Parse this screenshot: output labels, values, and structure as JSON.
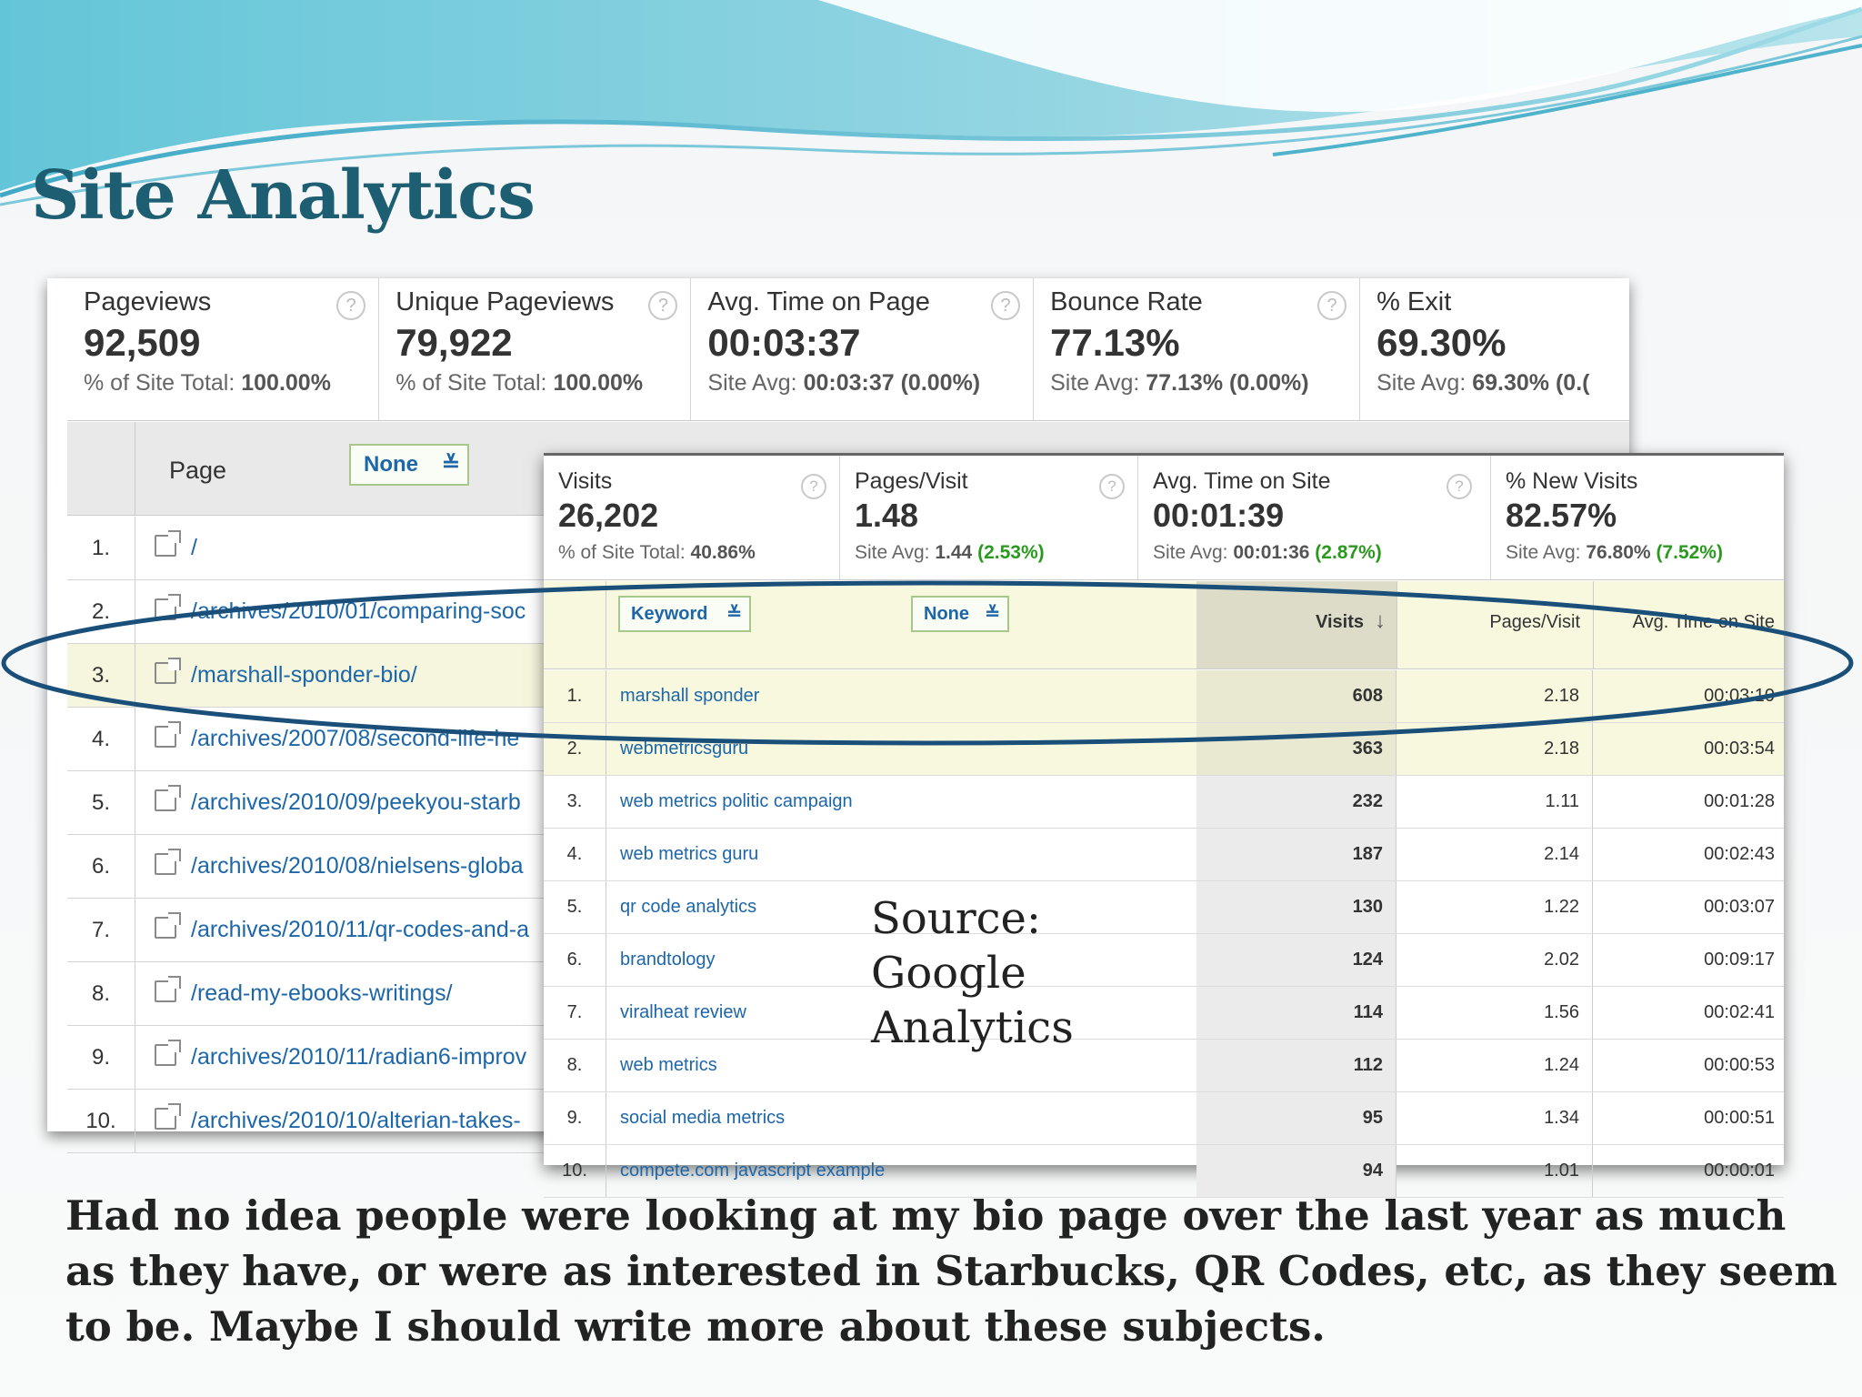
{
  "slide": {
    "title": "Site Analytics",
    "source": "Source: Google Analytics",
    "caption": "Had no idea people were looking at my bio page over the last year as much as they have, or were as interested in Starbucks, QR Codes, etc, as they seem to be. Maybe I should write more about these subjects."
  },
  "pages_report": {
    "summary": [
      {
        "label": "Pageviews",
        "value": "92,509",
        "sub_prefix": "% of Site Total:",
        "sub_value": "100.00%"
      },
      {
        "label": "Unique Pageviews",
        "value": "79,922",
        "sub_prefix": "% of Site Total:",
        "sub_value": "100.00%"
      },
      {
        "label": "Avg. Time on Page",
        "value": "00:03:37",
        "sub_prefix": "Site Avg:",
        "sub_value": "00:03:37 (0.00%)"
      },
      {
        "label": "Bounce Rate",
        "value": "77.13%",
        "sub_prefix": "Site Avg:",
        "sub_value": "77.13% (0.00%)"
      },
      {
        "label": "% Exit",
        "value": "69.30%",
        "sub_prefix": "Site Avg:",
        "sub_value": "69.30% (0.("
      }
    ],
    "column_page": "Page",
    "secondary_dimension": "None",
    "rows": [
      {
        "n": "1.",
        "path": "/"
      },
      {
        "n": "2.",
        "path": "/archives/2010/01/comparing-soc"
      },
      {
        "n": "3.",
        "path": "/marshall-sponder-bio/"
      },
      {
        "n": "4.",
        "path": "/archives/2007/08/second-life-he"
      },
      {
        "n": "5.",
        "path": "/archives/2010/09/peekyou-starb"
      },
      {
        "n": "6.",
        "path": "/archives/2010/08/nielsens-globa"
      },
      {
        "n": "7.",
        "path": "/archives/2010/11/qr-codes-and-a"
      },
      {
        "n": "8.",
        "path": "/read-my-ebooks-writings/"
      },
      {
        "n": "9.",
        "path": "/archives/2010/11/radian6-improv"
      },
      {
        "n": "10.",
        "path": "/archives/2010/10/alterian-takes-"
      }
    ]
  },
  "keywords_report": {
    "summary": [
      {
        "label": "Visits",
        "value": "26,202",
        "sub_prefix": "% of Site Total:",
        "sub_value": "40.86%",
        "sub_change": ""
      },
      {
        "label": "Pages/Visit",
        "value": "1.48",
        "sub_prefix": "Site Avg:",
        "sub_value": "1.44",
        "sub_change": "(2.53%)"
      },
      {
        "label": "Avg. Time on Site",
        "value": "00:01:39",
        "sub_prefix": "Site Avg:",
        "sub_value": "00:01:36",
        "sub_change": "(2.87%)"
      },
      {
        "label": "% New Visits",
        "value": "82.57%",
        "sub_prefix": "Site Avg:",
        "sub_value": "76.80%",
        "sub_change": "(7.52%)"
      }
    ],
    "primary_dimension": "Keyword",
    "secondary_dimension": "None",
    "col_visits": "Visits",
    "col_pages_visit": "Pages/Visit",
    "col_avg_time": "Avg. Time on Site",
    "rows": [
      {
        "n": "1.",
        "keyword": "marshall sponder",
        "visits": "608",
        "pages_visit": "2.18",
        "avg_time": "00:03:10"
      },
      {
        "n": "2.",
        "keyword": "webmetricsguru",
        "visits": "363",
        "pages_visit": "2.18",
        "avg_time": "00:03:54"
      },
      {
        "n": "3.",
        "keyword": "web metrics politic campaign",
        "visits": "232",
        "pages_visit": "1.11",
        "avg_time": "00:01:28"
      },
      {
        "n": "4.",
        "keyword": "web metrics guru",
        "visits": "187",
        "pages_visit": "2.14",
        "avg_time": "00:02:43"
      },
      {
        "n": "5.",
        "keyword": "qr code analytics",
        "visits": "130",
        "pages_visit": "1.22",
        "avg_time": "00:03:07"
      },
      {
        "n": "6.",
        "keyword": "brandtology",
        "visits": "124",
        "pages_visit": "2.02",
        "avg_time": "00:09:17"
      },
      {
        "n": "7.",
        "keyword": "viralheat review",
        "visits": "114",
        "pages_visit": "1.56",
        "avg_time": "00:02:41"
      },
      {
        "n": "8.",
        "keyword": "web metrics",
        "visits": "112",
        "pages_visit": "1.24",
        "avg_time": "00:00:53"
      },
      {
        "n": "9.",
        "keyword": "social media metrics",
        "visits": "95",
        "pages_visit": "1.34",
        "avg_time": "00:00:51"
      },
      {
        "n": "10.",
        "keyword": "compete.com javascript example",
        "visits": "94",
        "pages_visit": "1.01",
        "avg_time": "00:00:01"
      }
    ]
  },
  "colors": {
    "title": "#1d5e72",
    "link": "#1d66a8",
    "highlight": "#f6f6de",
    "ellipse": "#1a4f7a",
    "positive": "#2a9a1e"
  }
}
